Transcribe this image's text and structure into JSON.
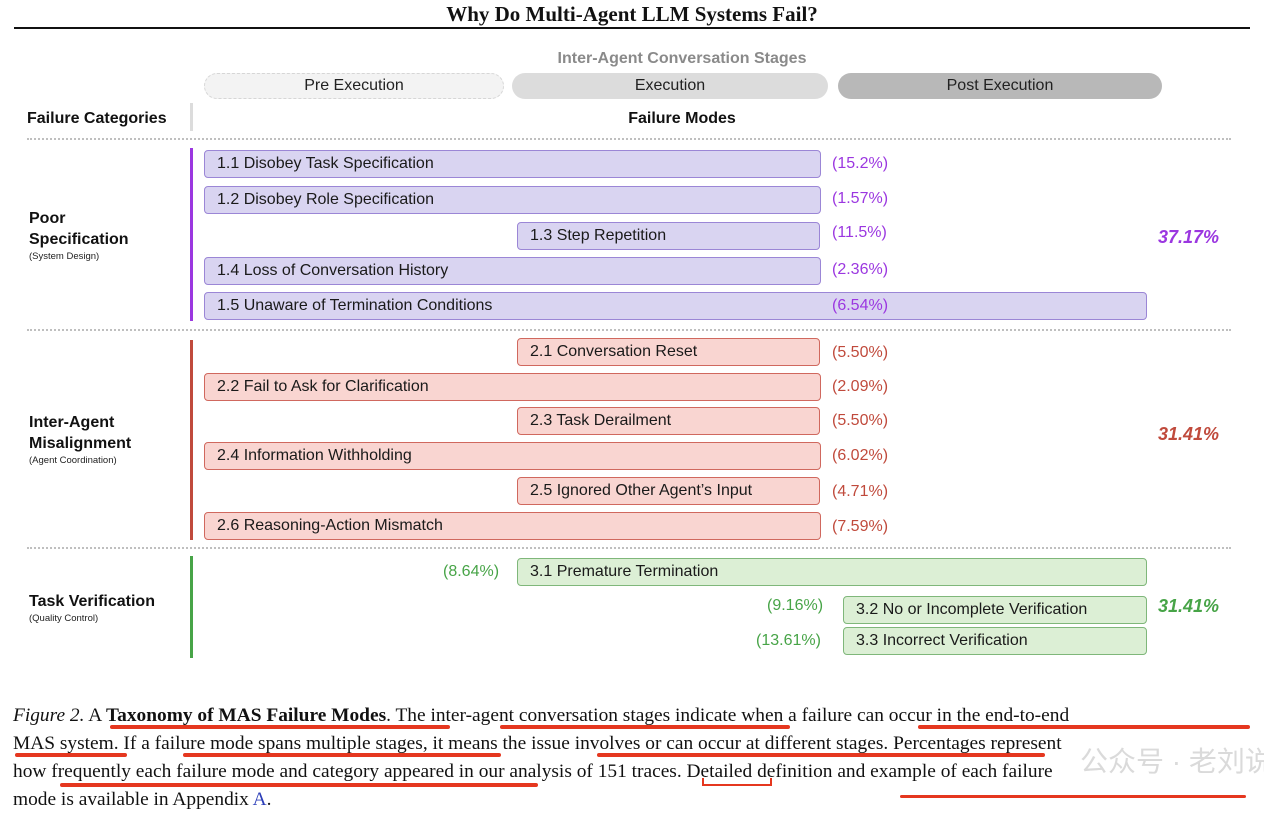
{
  "paper_title": "Why Do Multi-Agent LLM Systems Fail?",
  "stages": {
    "title": "Inter-Agent Conversation Stages",
    "pre": "Pre Execution",
    "execution": "Execution",
    "post": "Post Execution"
  },
  "headers": {
    "categories": "Failure Categories",
    "modes": "Failure Modes"
  },
  "categories": [
    {
      "name_line1": "Poor",
      "name_line2": "Specification",
      "sub": "(System Design)",
      "total": "37.17%",
      "color": "#9b37e0",
      "modes": [
        {
          "label": "1.1 Disobey Task Specification",
          "pct": "(15.2%)"
        },
        {
          "label": "1.2 Disobey Role Specification",
          "pct": "(1.57%)"
        },
        {
          "label": "1.3 Step Repetition",
          "pct": "(11.5%)"
        },
        {
          "label": "1.4 Loss of Conversation History",
          "pct": "(2.36%)"
        },
        {
          "label": "1.5 Unaware of Termination Conditions",
          "pct": "(6.54%)"
        }
      ]
    },
    {
      "name_line1": "Inter-Agent",
      "name_line2": "Misalignment",
      "sub": "(Agent Coordination)",
      "total": "31.41%",
      "color": "#c04a3c",
      "modes": [
        {
          "label": "2.1 Conversation Reset",
          "pct": "(5.50%)"
        },
        {
          "label": "2.2 Fail to Ask for Clarification",
          "pct": "(2.09%)"
        },
        {
          "label": "2.3 Task Derailment",
          "pct": "(5.50%)"
        },
        {
          "label": "2.4 Information Withholding",
          "pct": "(6.02%)"
        },
        {
          "label": "2.5 Ignored Other Agent’s Input",
          "pct": "(4.71%)"
        },
        {
          "label": "2.6 Reasoning-Action Mismatch",
          "pct": "(7.59%)"
        }
      ]
    },
    {
      "name_line1": "Task Verification",
      "sub": "(Quality Control)",
      "total": "31.41%",
      "color": "#47a447",
      "modes": [
        {
          "label": "3.1  Premature Termination",
          "pct": "(8.64%)"
        },
        {
          "label": "3.2 No or Incomplete Verification",
          "pct": "(9.16%)"
        },
        {
          "label": "3.3 Incorrect Verification",
          "pct": "(13.61%)"
        }
      ]
    }
  ],
  "caption": {
    "fig_label": "Figure 2.",
    "seg1": " A ",
    "bold": "Taxonomy of MAS Failure Modes",
    "line1_rest": ". The inter-agent conversation stages indicate when a failure can occur in the end-to-end",
    "line2": "MAS system. If a failure mode spans multiple stages, it means the issue involves or can occur at different stages. Percentages represent",
    "line3": "how frequently each failure mode and category appeared in our analysis of 151 traces. Detailed definition and example of each failure",
    "line4_start": "mode is available in Appendix ",
    "appendix_link": "A",
    "line4_end": "."
  },
  "watermark": "公众号 · 老刘说NLP"
}
